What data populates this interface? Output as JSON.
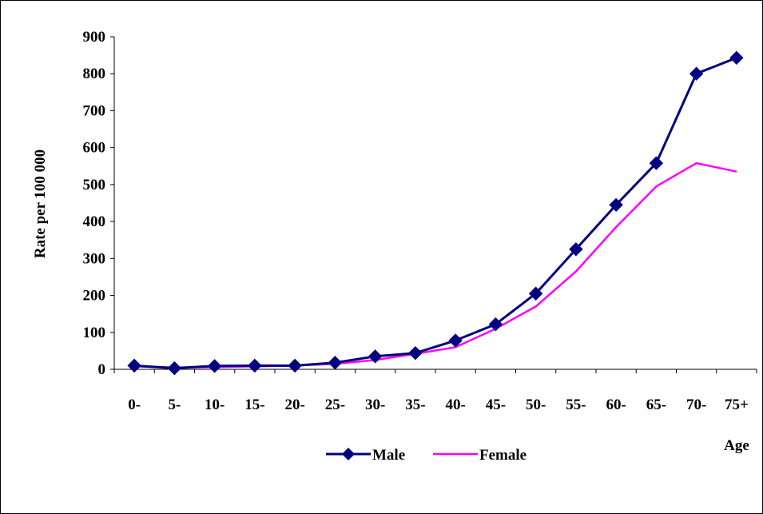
{
  "chart_data": {
    "type": "line",
    "title": "",
    "xlabel": "Age",
    "ylabel": "Rate per 100 000",
    "ylim": [
      0,
      900
    ],
    "yticks": [
      "0",
      "100",
      "200",
      "300",
      "400",
      "500",
      "600",
      "700",
      "800",
      "900"
    ],
    "categories": [
      "0-",
      "5-",
      "10-",
      "15-",
      "20-",
      "25-",
      "30-",
      "35-",
      "40-",
      "45-",
      "50-",
      "55-",
      "60-",
      "65-",
      "70-",
      "75+"
    ],
    "grid": false,
    "legend_position": "bottom",
    "series": [
      {
        "name": "Male",
        "color": "#000080",
        "marker": "diamond",
        "values": [
          10,
          3,
          9,
          10,
          10,
          18,
          35,
          44,
          78,
          122,
          205,
          325,
          445,
          558,
          800,
          843
        ]
      },
      {
        "name": "Female",
        "color": "#ff00ff",
        "marker": "none",
        "values": [
          8,
          5,
          6,
          8,
          10,
          15,
          25,
          42,
          60,
          110,
          170,
          265,
          385,
          495,
          558,
          535
        ]
      }
    ]
  }
}
